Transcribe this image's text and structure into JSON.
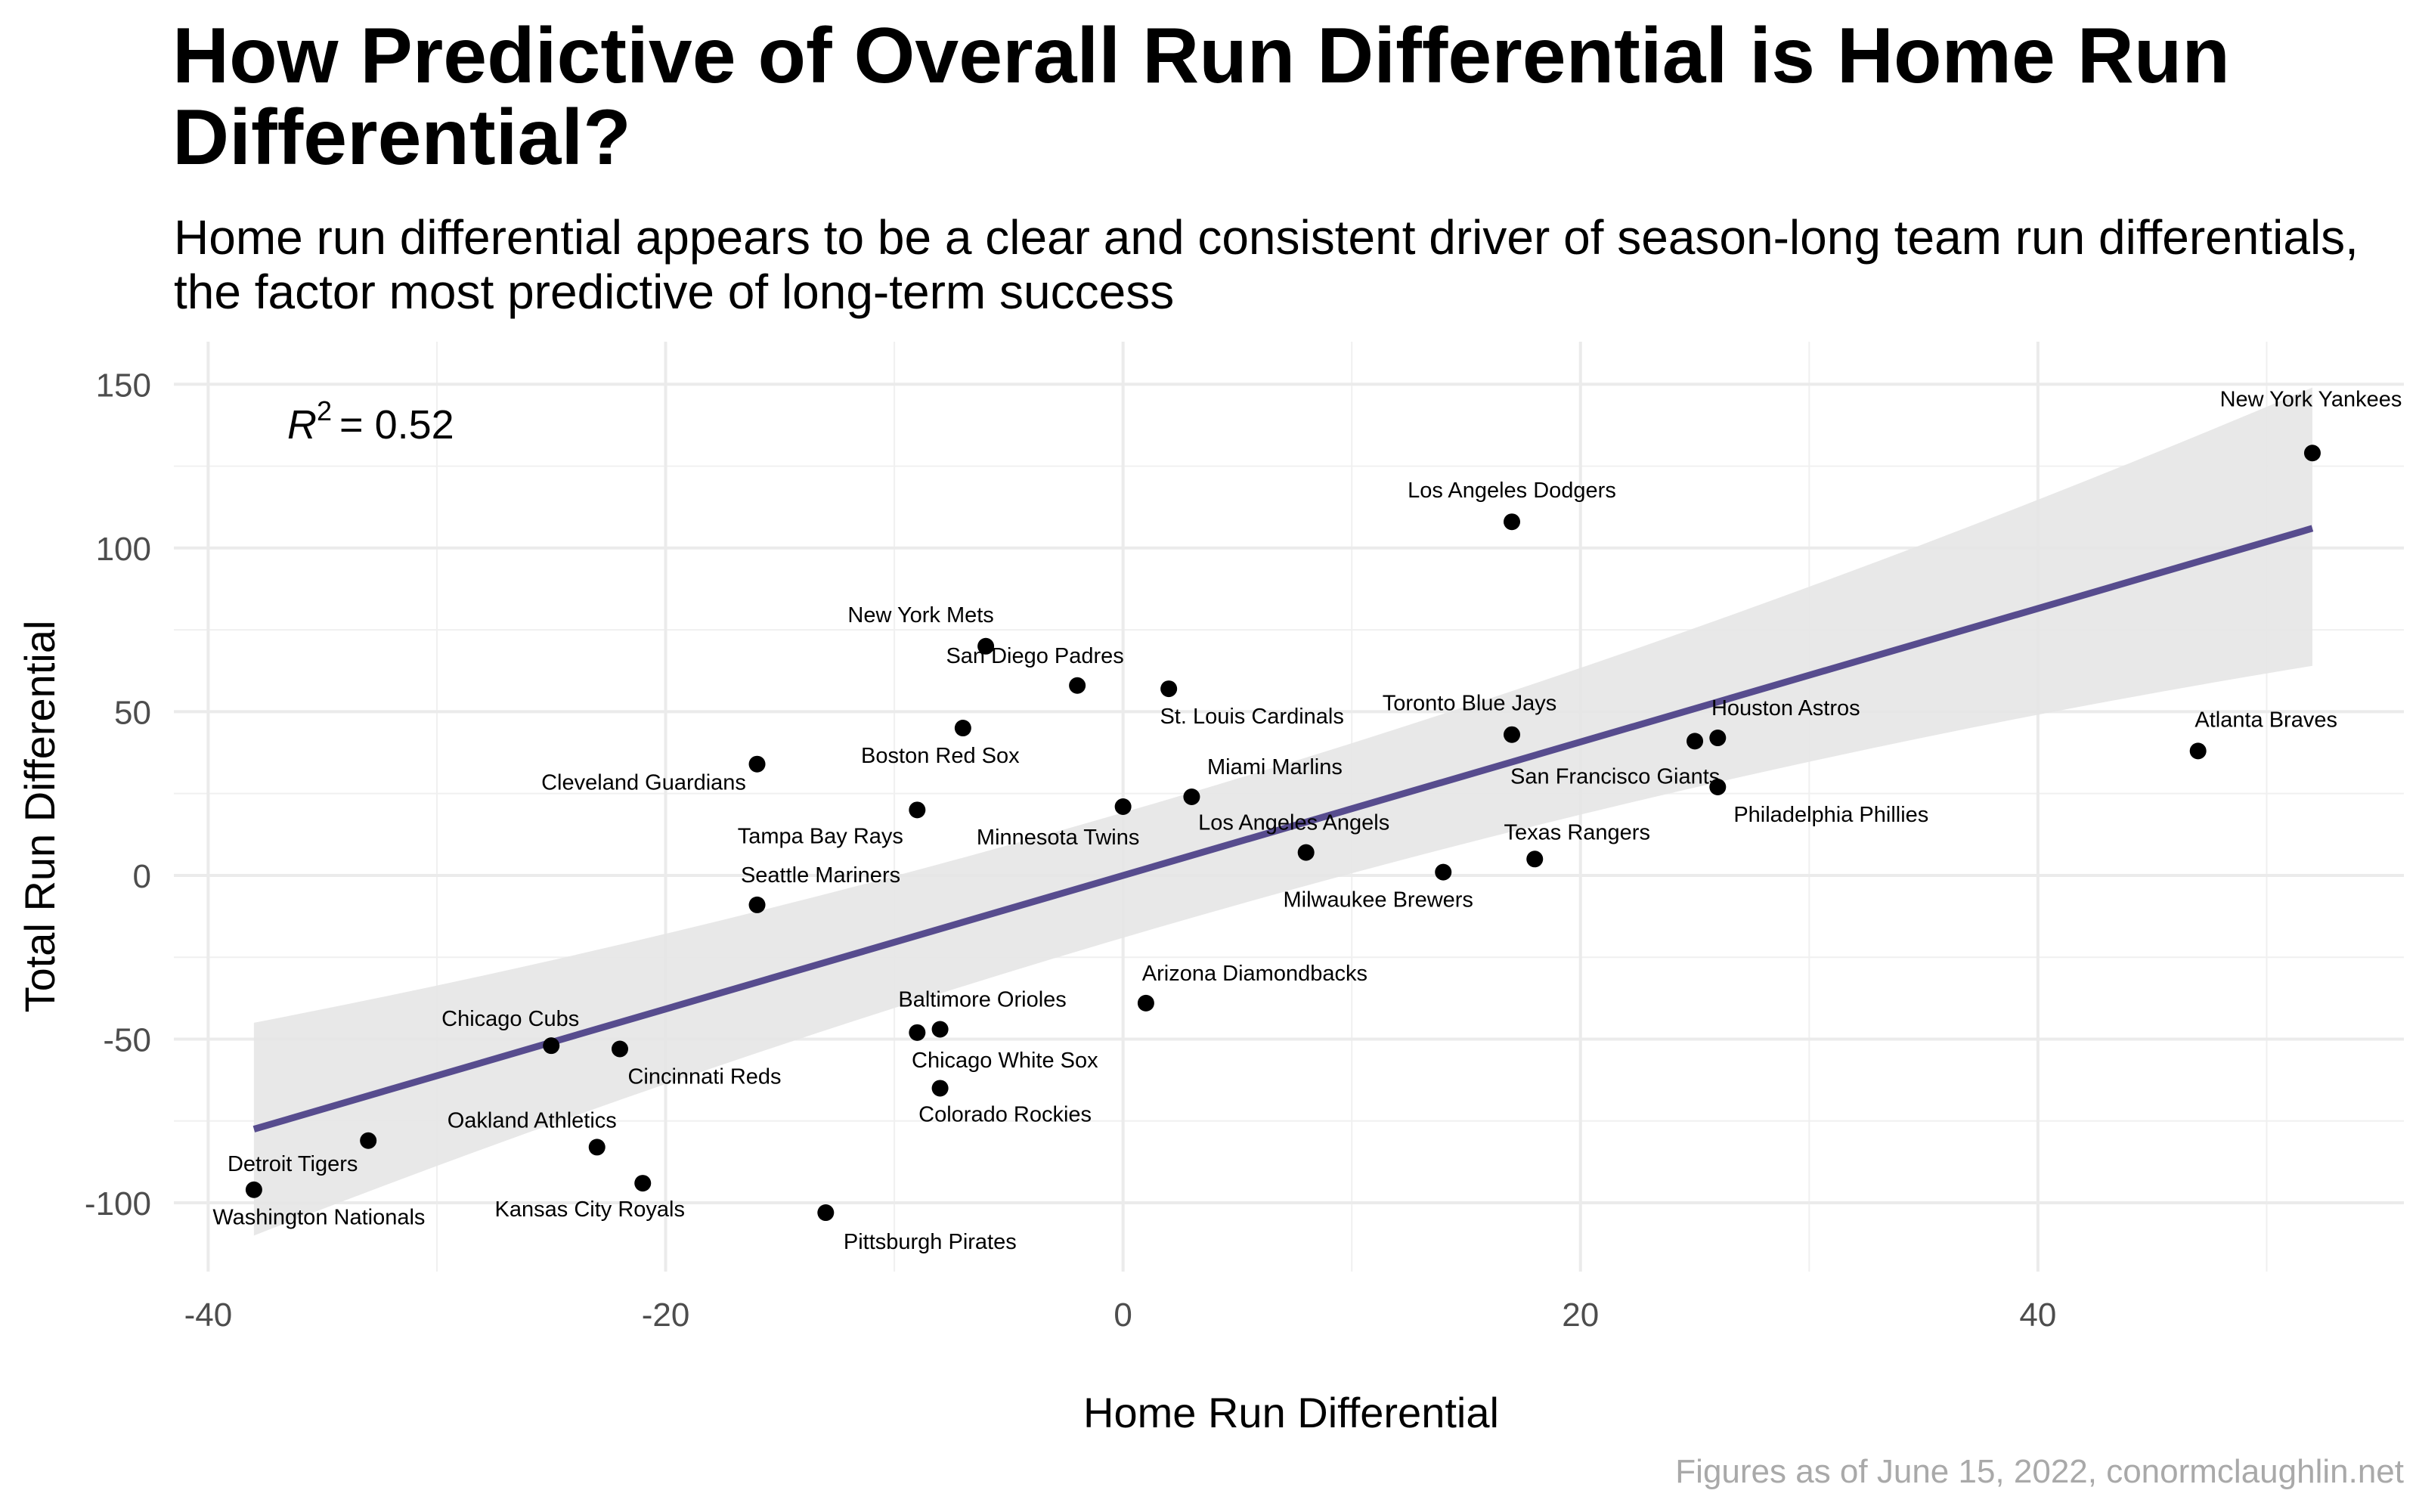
{
  "chart_data": {
    "type": "scatter",
    "title": "How Predictive of Overall Run Differential is Home Run Differential?",
    "subtitle": "Home run differential appears to be a clear and consistent driver of season-long team run differentials, the factor most predictive of long-term success",
    "xlabel": "Home Run Differential",
    "ylabel": "Total Run Differential",
    "caption": "Figures as of June 15, 2022,  conormclaughlin.net",
    "r2_label": "= 0.52",
    "r2_symbol": "R",
    "r2_exp": "2",
    "xlim": [
      -41.5,
      56
    ],
    "ylim": [
      -121,
      163
    ],
    "x_ticks": [
      -40,
      -20,
      0,
      20,
      40
    ],
    "x_tick_labels": [
      "-40",
      "-20",
      "0",
      "20",
      "40"
    ],
    "y_ticks": [
      -100,
      -50,
      0,
      50,
      100,
      150
    ],
    "y_tick_labels": [
      "-100",
      "-50",
      "0",
      "50",
      "100",
      "150"
    ],
    "grid": true,
    "trend": {
      "x": [
        -38,
        52
      ],
      "y": [
        -77.5,
        106
      ],
      "ci_low": [
        -110,
        64
      ],
      "ci_high": [
        -45,
        149
      ],
      "color": "#574C8E"
    },
    "points": [
      {
        "team": "New York Yankees",
        "x": 52,
        "y": 129
      },
      {
        "team": "Los Angeles Dodgers",
        "x": 17,
        "y": 108
      },
      {
        "team": "New York Mets",
        "x": -6,
        "y": 70
      },
      {
        "team": "San Diego Padres",
        "x": -2,
        "y": 58
      },
      {
        "team": "St. Louis Cardinals",
        "x": 2,
        "y": 57
      },
      {
        "team": "Boston Red Sox",
        "x": -7,
        "y": 45
      },
      {
        "team": "Toronto Blue Jays",
        "x": 17,
        "y": 43
      },
      {
        "team": "Houston Astros",
        "x": 26,
        "y": 42
      },
      {
        "team": "San Francisco Giants",
        "x": 25,
        "y": 41
      },
      {
        "team": "Atlanta Braves",
        "x": 47,
        "y": 38
      },
      {
        "team": "Cleveland Guardians",
        "x": -16,
        "y": 34
      },
      {
        "team": "Philadelphia Phillies",
        "x": 26,
        "y": 27
      },
      {
        "team": "Miami Marlins",
        "x": 3,
        "y": 24
      },
      {
        "team": "Minnesota Twins",
        "x": 0,
        "y": 21
      },
      {
        "team": "Tampa Bay Rays",
        "x": -9,
        "y": 20
      },
      {
        "team": "Los Angeles Angels",
        "x": 8,
        "y": 7
      },
      {
        "team": "Texas Rangers",
        "x": 18,
        "y": 5
      },
      {
        "team": "Milwaukee Brewers",
        "x": 14,
        "y": 1
      },
      {
        "team": "Seattle Mariners",
        "x": -16,
        "y": -9
      },
      {
        "team": "Arizona Diamondbacks",
        "x": 1,
        "y": -39
      },
      {
        "team": "Baltimore Orioles",
        "x": -8,
        "y": -47
      },
      {
        "team": "Chicago White Sox",
        "x": -9,
        "y": -48
      },
      {
        "team": "Chicago Cubs",
        "x": -25,
        "y": -52
      },
      {
        "team": "Cincinnati Reds",
        "x": -22,
        "y": -53
      },
      {
        "team": "Colorado Rockies",
        "x": -8,
        "y": -65
      },
      {
        "team": "Detroit Tigers",
        "x": -33,
        "y": -81
      },
      {
        "team": "Oakland Athletics",
        "x": -23,
        "y": -83
      },
      {
        "team": "Kansas City Royals",
        "x": -21,
        "y": -94
      },
      {
        "team": "Washington Nationals",
        "x": -38,
        "y": -96
      },
      {
        "team": "Pittsburgh Pirates",
        "x": -13,
        "y": -103
      }
    ]
  }
}
